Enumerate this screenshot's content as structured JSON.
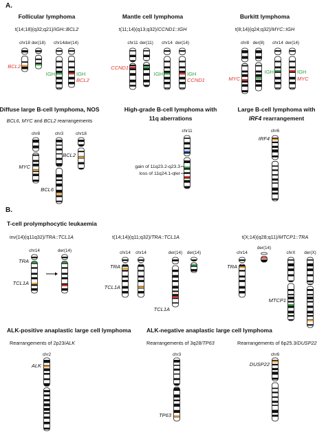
{
  "section_a": {
    "label": "A.",
    "follicular": {
      "title": "Follicular lymphoma",
      "translocation": "t(14;18)(q32;q21)/",
      "fusion": "IGH::BCL2",
      "chromosomes": [
        "chr18",
        "der(18)",
        "chr14",
        "der(14)"
      ],
      "genes": [
        "BCL2",
        "IGH",
        "IGH",
        "BCL2"
      ]
    },
    "mantle": {
      "title": "Mantle cell lymphoma",
      "translocation": "t(11;14)(q13;q32)/",
      "fusion": "CCND1::IGH",
      "chromosomes": [
        "chr11",
        "der(11)",
        "chr14",
        "der(14)"
      ],
      "genes": [
        "CCND1",
        "IGH",
        "IGH",
        "CCND1"
      ]
    },
    "burkitt": {
      "title": "Burkitt lymphoma",
      "translocation": "t(8;14)(q24;q32)/",
      "fusion": "MYC::IGH",
      "chromosomes": [
        "chr8",
        "der(8)",
        "chr14",
        "der(14)"
      ],
      "genes": [
        "MYC",
        "IGH",
        "IGH",
        "MYC"
      ]
    },
    "dlbcl": {
      "title": "Diffuse large B-cell lymphoma, NOS",
      "subtitle": [
        "BCL6",
        ", ",
        "MYC",
        " and ",
        "BCL2",
        " rearrangements"
      ],
      "chromosomes": [
        "chr8",
        "chr3",
        "chr18"
      ],
      "genes": [
        "MYC",
        "BCL2",
        "BCL6"
      ]
    },
    "hgbl": {
      "title": [
        "High-grade B-cell lymphoma with",
        "11q aberrations"
      ],
      "chromosome": "chr11",
      "annotations": [
        "gain of 11q23.2-q23.3",
        "loss of 11q24.1-qter"
      ]
    },
    "lbcl": {
      "title": [
        "Large B-cell lymphoma with",
        "IRF4",
        " rearrangement"
      ],
      "chromosome": "chr6",
      "gene": "IRF4"
    }
  },
  "section_b": {
    "label": "B.",
    "tpll": {
      "title": "T-cell prolymphocytic leukaemia",
      "inv": {
        "translocation": "inv(14)(q11q32)/",
        "fusion": "TRA::TCL1A",
        "chromosomes": [
          "chr14",
          "der(14)"
        ],
        "genes": [
          "TRA",
          "TCL1A"
        ]
      },
      "t1414": {
        "translocation": "t(14;14)(q11;q32)/",
        "fusion": "TRA::TCL1A",
        "chromosomes": [
          "chr14",
          "chr14",
          "der(14)",
          "der(14)"
        ],
        "genes": [
          "TRA",
          "TCL1A",
          "TCL1A"
        ]
      },
      "tx14": {
        "translocation": "t(X;14)(q28;q11)/",
        "fusion": "MTCP1::TRA",
        "chromosomes": [
          "chr14",
          "der(14)",
          "chrX",
          "der(X)"
        ],
        "genes": [
          "TRA",
          "MTCP1"
        ]
      }
    },
    "alk_pos": {
      "title": "ALK-positive anaplastic large cell lymphoma",
      "subtitle": "Rearrangements of 2p23/",
      "gene_sub": "ALK",
      "chromosome": "chr2",
      "gene": "ALK"
    },
    "alk_neg": {
      "title": "ALK-negative anaplastic large cell lymphoma",
      "tp63": {
        "subtitle": "Rearrangements of 3q28/",
        "gene_sub": "TP63",
        "chromosome": "chr3",
        "gene": "TP63"
      },
      "dusp22": {
        "subtitle": "Rearrangements of 6p25.3/",
        "gene_sub": "DUSP22",
        "chromosome": "chr6",
        "gene": "DUSP22"
      }
    }
  }
}
